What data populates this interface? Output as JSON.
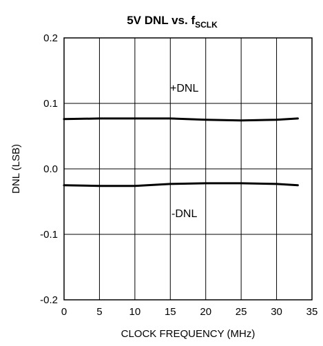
{
  "chart_data": {
    "type": "line",
    "title": "5V DNL vs. f",
    "title_sub": "SCLK",
    "xlabel": "CLOCK FREQUENCY (MHz)",
    "ylabel": "DNL (LSB)",
    "xlim": [
      0,
      35
    ],
    "ylim": [
      -0.2,
      0.2
    ],
    "x_ticks": [
      "0",
      "5",
      "10",
      "15",
      "20",
      "25",
      "30",
      "35"
    ],
    "y_ticks": [
      "0.2",
      "0.1",
      "0.0",
      "-0.1",
      "-0.2"
    ],
    "grid": true,
    "series": [
      {
        "name": "+DNL",
        "x": [
          0,
          5,
          10,
          15,
          20,
          25,
          30,
          33
        ],
        "y": [
          0.076,
          0.077,
          0.077,
          0.077,
          0.075,
          0.074,
          0.075,
          0.077
        ]
      },
      {
        "name": "-DNL",
        "x": [
          0,
          5,
          10,
          15,
          20,
          25,
          30,
          33
        ],
        "y": [
          -0.025,
          -0.026,
          -0.026,
          -0.023,
          -0.022,
          -0.022,
          -0.023,
          -0.025
        ]
      }
    ]
  }
}
